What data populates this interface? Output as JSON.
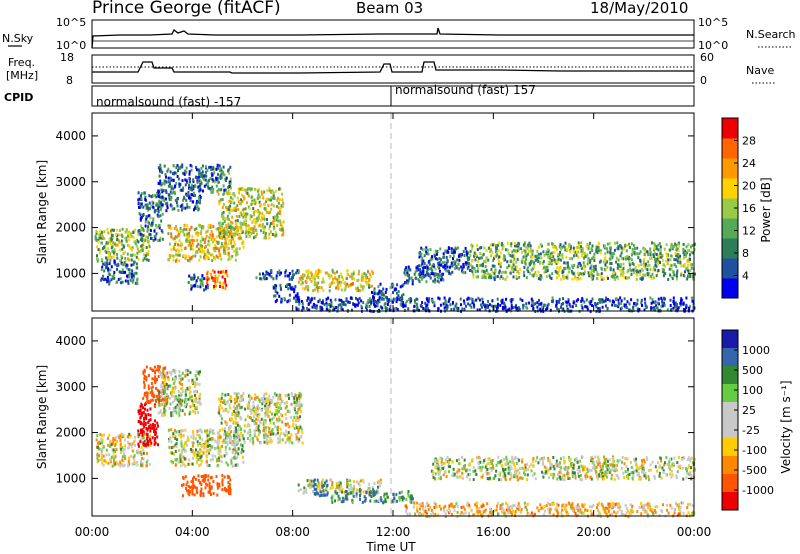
{
  "header": {
    "station": "Prince George (fitACF)",
    "beam": "Beam 03",
    "date": "18/May/2010"
  },
  "noise_panel": {
    "left_label": "N.Sky",
    "right_label": "N.Search",
    "left_ticks": [
      "10^5",
      "10^0"
    ],
    "right_ticks": [
      "10^5",
      "10^0"
    ]
  },
  "freq_panel": {
    "left_label_1": "Freq.",
    "left_label_2": "[MHz]",
    "right_label": "Nave",
    "left_ticks": [
      "18",
      "8"
    ],
    "right_ticks": [
      "60",
      "0"
    ]
  },
  "cpid": {
    "label": "CPID",
    "segments": [
      {
        "text": "normalsound (fast) -157",
        "start_hour": 0
      },
      {
        "text": "normalsound (fast) 157",
        "start_hour": 12
      }
    ]
  },
  "colors": {
    "power_scale": [
      "#0000ee",
      "#2050a0",
      "#2e7d5a",
      "#55aa55",
      "#99cc44",
      "#ffd200",
      "#ff9900",
      "#ff6600",
      "#ee0000"
    ],
    "velocity_scale": [
      "#ee0000",
      "#ff5500",
      "#ff8800",
      "#ffcc00",
      "#c8c8c8",
      "#c8c8c8",
      "#66cc44",
      "#338833",
      "#3366aa",
      "#1a1aaa"
    ]
  },
  "chart_data": [
    {
      "type": "heatmap",
      "title": "",
      "xlabel": "Time UT",
      "ylabel": "Slant Range [km]",
      "xlim": [
        0,
        24
      ],
      "ylim": [
        180,
        4500
      ],
      "x_ticks": [
        "00:00",
        "04:00",
        "08:00",
        "12:00",
        "16:00",
        "20:00",
        "00:00"
      ],
      "y_ticks": [
        "1000",
        "2000",
        "3000",
        "4000"
      ],
      "colorbar": {
        "label": "Power [dB]",
        "range": [
          0,
          30
        ],
        "ticks": [
          "4",
          "8",
          "12",
          "16",
          "20",
          "24",
          "28"
        ]
      },
      "regions": [
        {
          "t0": 0.1,
          "t1": 2.3,
          "r0": 1300,
          "r1": 2000,
          "value": 14
        },
        {
          "t0": 0.3,
          "t1": 1.8,
          "r0": 800,
          "r1": 1300,
          "value": 6
        },
        {
          "t0": 1.8,
          "t1": 2.8,
          "r0": 1700,
          "r1": 2800,
          "value": 8
        },
        {
          "t0": 2.6,
          "t1": 4.3,
          "r0": 2400,
          "r1": 3400,
          "value": 6
        },
        {
          "t0": 3.0,
          "t1": 6.0,
          "r0": 1300,
          "r1": 2100,
          "value": 18
        },
        {
          "t0": 5.0,
          "t1": 7.6,
          "r0": 1800,
          "r1": 2900,
          "value": 16
        },
        {
          "t0": 4.2,
          "t1": 5.5,
          "r0": 2800,
          "r1": 3400,
          "value": 8
        },
        {
          "t0": 4.5,
          "t1": 5.4,
          "r0": 700,
          "r1": 1100,
          "value": 26
        },
        {
          "t0": 3.8,
          "t1": 4.6,
          "r0": 650,
          "r1": 1000,
          "value": 6
        },
        {
          "t0": 6.5,
          "t1": 8.2,
          "r0": 900,
          "r1": 1100,
          "value": 5
        },
        {
          "t0": 7.2,
          "t1": 8.2,
          "r0": 400,
          "r1": 800,
          "value": 4
        },
        {
          "t0": 8.2,
          "t1": 11.2,
          "r0": 650,
          "r1": 1100,
          "value": 18
        },
        {
          "t0": 11.0,
          "t1": 12.4,
          "r0": 400,
          "r1": 800,
          "value": 5
        },
        {
          "t0": 12.4,
          "t1": 14.0,
          "r0": 800,
          "r1": 1200,
          "value": 7
        },
        {
          "t0": 13.0,
          "t1": 15.0,
          "r0": 1000,
          "r1": 1600,
          "value": 6
        },
        {
          "t0": 15.0,
          "t1": 24.0,
          "r0": 900,
          "r1": 1700,
          "value": 12
        },
        {
          "t0": 8.0,
          "t1": 24.0,
          "r0": 200,
          "r1": 500,
          "value": 4
        }
      ]
    },
    {
      "type": "heatmap",
      "title": "",
      "xlabel": "Time UT",
      "ylabel": "Slant Range [km]",
      "xlim": [
        0,
        24
      ],
      "ylim": [
        180,
        4500
      ],
      "x_ticks": [
        "00:00",
        "04:00",
        "08:00",
        "12:00",
        "16:00",
        "20:00",
        "00:00"
      ],
      "y_ticks": [
        "1000",
        "2000",
        "3000",
        "4000"
      ],
      "colorbar": {
        "label": "Velocity [m s⁻¹]",
        "range": [
          -1000,
          1000
        ],
        "ticks": [
          "1000",
          "500",
          "100",
          "25",
          "-25",
          "-100",
          "-500",
          "-1000"
        ]
      },
      "regions": [
        {
          "t0": 0.1,
          "t1": 2.3,
          "r0": 1300,
          "r1": 2000,
          "value": -10
        },
        {
          "t0": 1.8,
          "t1": 2.6,
          "r0": 1700,
          "r1": 2700,
          "value": -600
        },
        {
          "t0": 2.0,
          "t1": 3.0,
          "r0": 2600,
          "r1": 3500,
          "value": -300
        },
        {
          "t0": 2.6,
          "t1": 4.3,
          "r0": 2400,
          "r1": 3400,
          "value": 10
        },
        {
          "t0": 3.0,
          "t1": 6.0,
          "r0": 1300,
          "r1": 2100,
          "value": 5
        },
        {
          "t0": 5.0,
          "t1": 8.4,
          "r0": 1800,
          "r1": 2900,
          "value": 0
        },
        {
          "t0": 3.5,
          "t1": 5.5,
          "r0": 650,
          "r1": 1100,
          "value": -200
        },
        {
          "t0": 8.2,
          "t1": 11.5,
          "r0": 700,
          "r1": 1000,
          "value": 5
        },
        {
          "t0": 8.8,
          "t1": 9.4,
          "r0": 650,
          "r1": 1000,
          "value": 300
        },
        {
          "t0": 9.5,
          "t1": 12.8,
          "r0": 500,
          "r1": 750,
          "value": 90
        },
        {
          "t0": 13.5,
          "t1": 24.0,
          "r0": 1000,
          "r1": 1500,
          "value": 5
        },
        {
          "t0": 12.4,
          "t1": 24.0,
          "r0": 200,
          "r1": 500,
          "value": -40
        }
      ]
    }
  ]
}
